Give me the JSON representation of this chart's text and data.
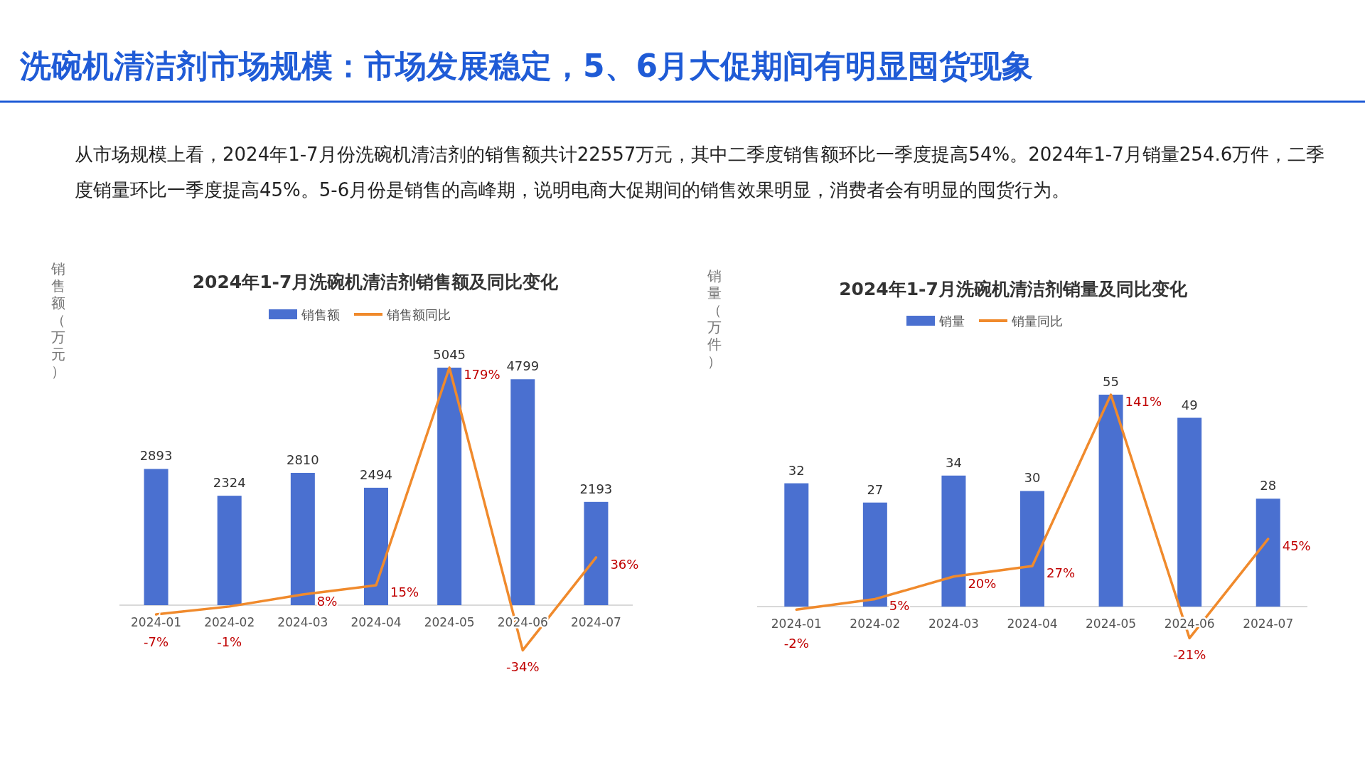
{
  "chart_data": [
    {
      "type": "other",
      "title": "洗碗机清洁剂市场规模：市场发展稳定，5、6月大促期间有明显囤货现象",
      "subtitle": "从市场规模上看，2024年1-7月份洗碗机清洁剂的销售额共计22557万元，其中二季度销售额环比一季度提高54%。2024年1-7月销量254.6万件，二季度销量环比一季度提高45%。5-6月份是销售的高峰期，说明电商大促期间的销售效果明显，消费者会有明显的囤货行为。"
    },
    {
      "type": "bar",
      "title": "2024年1-7月洗碗机清洁剂销售额及同比变化",
      "ylabel": "销售额（万元）",
      "data_labels": true,
      "legend": "top",
      "categories": [
        "2024-01",
        "2024-02",
        "2024-03",
        "2024-04",
        "2024-05",
        "2024-06",
        "2024-07"
      ],
      "series": [
        {
          "name": "销售额",
          "color": "#4a70d0",
          "values": [
            2893,
            2324,
            2810,
            2494,
            5045,
            4799,
            2193
          ]
        }
      ]
    },
    {
      "type": "line",
      "legend": "top",
      "tick_labels": false,
      "categories": [
        "2024-01",
        "2024-02",
        "2024-03",
        "2024-04",
        "2024-05",
        "2024-06",
        "2024-07"
      ],
      "series": [
        {
          "name": "销售额同比",
          "color": "#f08a2c",
          "values": [
            -7,
            -1,
            8,
            15,
            179,
            -34,
            36
          ],
          "value_labels": [
            "-7%",
            "-1%",
            "8%",
            "15%",
            "179%",
            "-34%",
            "36%"
          ]
        }
      ]
    },
    {
      "type": "bar",
      "title": "2024年1-7月洗碗机清洁剂销量及同比变化",
      "ylabel": "销量（万件）",
      "data_labels": true,
      "legend": "top",
      "categories": [
        "2024-01",
        "2024-02",
        "2024-03",
        "2024-04",
        "2024-05",
        "2024-06",
        "2024-07"
      ],
      "series": [
        {
          "name": "销量",
          "color": "#4a70d0",
          "values": [
            32,
            27,
            34,
            30,
            55,
            49,
            28
          ]
        }
      ]
    },
    {
      "type": "line",
      "legend": "top",
      "tick_labels": false,
      "categories": [
        "2024-01",
        "2024-02",
        "2024-03",
        "2024-04",
        "2024-05",
        "2024-06",
        "2024-07"
      ],
      "series": [
        {
          "name": "销量同比",
          "color": "#f08a2c",
          "values": [
            -2,
            5,
            20,
            27,
            141,
            -21,
            45
          ],
          "value_labels": [
            "-2%",
            "5%",
            "20%",
            "27%",
            "141%",
            "-21%",
            "45%"
          ]
        }
      ]
    }
  ]
}
